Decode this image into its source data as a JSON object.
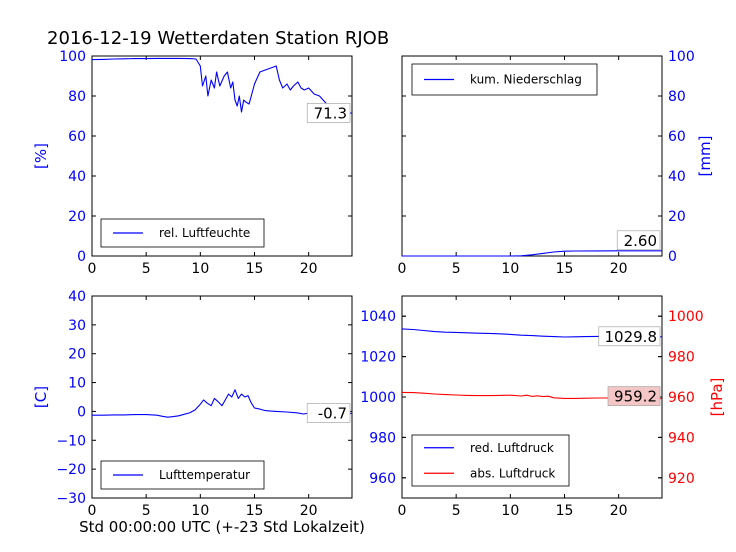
{
  "title": "2016-12-19 Wetterdaten Station RJOB",
  "xlabel": "Std 00:00:00 UTC (+-23 Std Lokalzeit)",
  "colors": {
    "blue": "#0000ff",
    "red": "#ff0000",
    "axis": "#000000",
    "valuebox_bg": "#ffffff",
    "valuebox_red": "#f4c6c6"
  },
  "chart_data": [
    {
      "id": "humidity",
      "type": "line",
      "ylabel": "[%]",
      "ylabel_side": "left",
      "xlim": [
        0,
        24
      ],
      "xticks": [
        0,
        5,
        10,
        15,
        20
      ],
      "ylim": [
        0,
        100
      ],
      "yticks": [
        0,
        20,
        40,
        60,
        80,
        100
      ],
      "legend": "bottom-left",
      "value_label": "71.3",
      "series": [
        {
          "name": "rel. Luftfeuchte",
          "color": "#0000ff",
          "x": [
            0,
            1,
            2,
            3,
            4,
            5,
            6,
            7,
            8,
            9,
            9.6,
            10,
            10.2,
            10.5,
            10.7,
            11,
            11.3,
            11.5,
            11.8,
            12.2,
            12.5,
            12.8,
            13,
            13.2,
            13.4,
            13.6,
            13.8,
            14,
            14.2,
            14.5,
            15,
            15.5,
            16,
            16.5,
            17,
            17.3,
            17.6,
            18,
            18.3,
            18.6,
            19,
            19.3,
            19.6,
            20,
            20.5,
            21,
            21.5,
            22,
            22.5,
            23,
            23.5,
            24
          ],
          "y": [
            98.2,
            98.3,
            98.5,
            98.6,
            98.7,
            98.7,
            98.8,
            98.8,
            98.8,
            98.7,
            98.5,
            95,
            85,
            90,
            80,
            88,
            84,
            92,
            85,
            90,
            92,
            84,
            87,
            78,
            75,
            80,
            72,
            78,
            77,
            76,
            86,
            92,
            93,
            94,
            95,
            88,
            84,
            86,
            83,
            85,
            87,
            84,
            83,
            84,
            81,
            80,
            77,
            74,
            76,
            73,
            72,
            71.3
          ]
        }
      ]
    },
    {
      "id": "precipitation",
      "type": "line",
      "ylabel": "[mm]",
      "ylabel_side": "right",
      "xlim": [
        0,
        24
      ],
      "xticks": [
        0,
        5,
        10,
        15,
        20
      ],
      "ylim": [
        0,
        100
      ],
      "yticks": [
        0,
        20,
        40,
        60,
        80,
        100
      ],
      "legend": "top-left",
      "value_label": "2.60",
      "series": [
        {
          "name": "kum. Niederschlag",
          "color": "#0000ff",
          "x": [
            0,
            5,
            10,
            11,
            12,
            13,
            14,
            15,
            16,
            18,
            20,
            22,
            24
          ],
          "y": [
            0,
            0,
            0,
            0.1,
            0.6,
            1.3,
            2.0,
            2.4,
            2.5,
            2.55,
            2.58,
            2.6,
            2.6
          ]
        }
      ]
    },
    {
      "id": "temperature",
      "type": "line",
      "ylabel": "[C]",
      "ylabel_side": "left",
      "xlim": [
        0,
        24
      ],
      "xticks": [
        0,
        5,
        10,
        15,
        20
      ],
      "ylim": [
        -30,
        40
      ],
      "yticks": [
        -30,
        -20,
        -10,
        0,
        10,
        20,
        30,
        40
      ],
      "legend": "bottom-left",
      "value_label": "-0.7",
      "series": [
        {
          "name": "Lufttemperatur",
          "color": "#0000ff",
          "x": [
            0,
            1,
            2,
            3,
            4,
            5,
            6,
            6.5,
            7,
            7.5,
            8,
            8.5,
            9,
            9.5,
            10,
            10.3,
            10.6,
            11,
            11.3,
            11.6,
            12,
            12.3,
            12.6,
            12.9,
            13.2,
            13.5,
            13.8,
            14.1,
            14.4,
            14.7,
            15,
            15.5,
            16,
            16.5,
            17,
            18,
            19,
            19.5,
            20,
            20.5,
            21,
            22,
            23,
            24
          ],
          "y": [
            -1.3,
            -1.3,
            -1.2,
            -1.2,
            -1.1,
            -1.1,
            -1.3,
            -1.7,
            -2.0,
            -1.8,
            -1.5,
            -1.0,
            -0.5,
            0.5,
            2.5,
            4.0,
            3.0,
            2.0,
            4.5,
            3.5,
            2.0,
            4.0,
            6.0,
            5.0,
            7.5,
            4.5,
            6.0,
            5.0,
            5.5,
            3.0,
            1.2,
            0.8,
            0.3,
            0.1,
            0.0,
            -0.2,
            -0.5,
            -0.9,
            -0.6,
            -1.0,
            -0.8,
            -0.9,
            -0.7,
            -0.7
          ]
        }
      ]
    },
    {
      "id": "pressure",
      "type": "line",
      "left_ylim": [
        950,
        1050
      ],
      "left_yticks": [
        960,
        980,
        1000,
        1020,
        1040
      ],
      "right_ylim": [
        910,
        1010
      ],
      "right_yticks": [
        920,
        940,
        960,
        980,
        1000
      ],
      "right_ylabel": "[hPa]",
      "xlim": [
        0,
        24
      ],
      "xticks": [
        0,
        5,
        10,
        15,
        20
      ],
      "legend": "bottom-left",
      "value_labels": [
        "1029.8",
        "959.2"
      ],
      "series": [
        {
          "name": "red. Luftdruck",
          "color": "#0000ff",
          "axis": "left",
          "x": [
            0,
            1,
            2,
            3,
            4,
            5,
            6,
            7,
            8,
            9,
            10,
            11,
            12,
            13,
            14,
            15,
            16,
            17,
            18,
            19,
            20,
            21,
            22,
            23,
            24
          ],
          "y": [
            1033.7,
            1033.4,
            1032.9,
            1032.4,
            1032.1,
            1032.0,
            1031.8,
            1031.6,
            1031.5,
            1031.3,
            1031.0,
            1030.6,
            1030.4,
            1030.1,
            1029.9,
            1029.7,
            1029.8,
            1029.9,
            1030.0,
            1030.1,
            1030.2,
            1030.1,
            1030.0,
            1029.9,
            1029.8
          ]
        },
        {
          "name": "abs. Luftdruck",
          "color": "#ff0000",
          "axis": "right",
          "x": [
            0,
            1,
            2,
            3,
            4,
            5,
            6,
            7,
            8,
            9,
            10,
            11,
            11.5,
            12,
            12.5,
            13,
            13.5,
            14,
            15,
            16,
            17,
            18,
            19,
            20,
            21,
            22,
            23,
            24
          ],
          "y": [
            962.3,
            962.2,
            961.9,
            961.5,
            961.2,
            961.0,
            960.8,
            960.7,
            960.7,
            960.8,
            960.9,
            960.5,
            960.9,
            960.3,
            960.6,
            960.2,
            960.4,
            959.6,
            959.3,
            959.3,
            959.4,
            959.5,
            959.5,
            959.6,
            959.6,
            959.5,
            959.4,
            959.2
          ]
        }
      ]
    }
  ]
}
